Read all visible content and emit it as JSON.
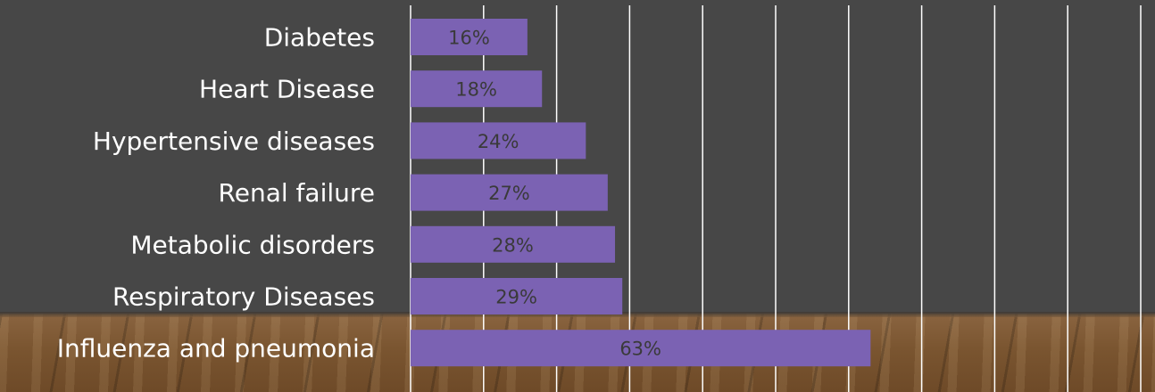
{
  "chart_data": {
    "type": "bar",
    "orientation": "horizontal",
    "categories": [
      "Diabetes",
      "Heart Disease",
      "Hypertensive diseases",
      "Renal failure",
      "Metabolic disorders",
      "Respiratory Diseases",
      "Influenza and pneumonia"
    ],
    "values": [
      16,
      18,
      24,
      27,
      28,
      29,
      63
    ],
    "value_labels": [
      "16%",
      "18%",
      "24%",
      "27%",
      "28%",
      "29%",
      "63%"
    ],
    "xlim": [
      0,
      100
    ],
    "gridline_step": 10,
    "grid": true,
    "colors": {
      "bar": "#7b62b3",
      "gridline": "#ffffff",
      "category_text": "#ffffff",
      "value_text": "#3a3a3a",
      "background": "#474747"
    }
  }
}
